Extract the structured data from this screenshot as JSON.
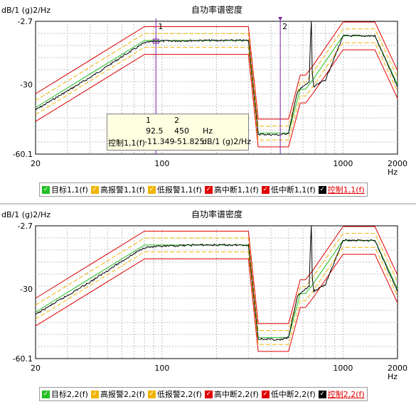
{
  "charts": [
    {
      "title": "自功率谱密度",
      "ylabel": "dB/1 (g)2/Hz",
      "xunit": "Hz",
      "yticks": [
        "-2.7",
        "-30",
        "-60.1"
      ],
      "xticks": [
        "20",
        "100",
        "1000",
        "2000"
      ],
      "cursors": [
        {
          "label": "1",
          "x": 92.5
        },
        {
          "label": "2",
          "x": 450
        }
      ],
      "tooltip": {
        "header": [
          "1",
          "2"
        ],
        "row1": [
          "92.5",
          "450",
          "Hz"
        ],
        "row2": [
          "控制1,1(f)",
          "-11.349",
          "-51.825",
          "dB/1 (g)2/Hz"
        ]
      },
      "legend": [
        {
          "label": "目标1,1(f)",
          "color": "#22c022",
          "checked": true
        },
        {
          "label": "高报警1,1(f)",
          "color": "#f0b400",
          "checked": true
        },
        {
          "label": "低报警1,1(f)",
          "color": "#f0b400",
          "checked": true
        },
        {
          "label": "高中断1,1(f)",
          "color": "#e00000",
          "checked": true
        },
        {
          "label": "低中断1,1(f)",
          "color": "#e00000",
          "checked": true
        },
        {
          "label": "控制1,1(f)",
          "color": "#000000",
          "checked": true
        }
      ]
    },
    {
      "title": "自功率谱密度",
      "ylabel": "dB/1 (g)2/Hz",
      "xunit": "Hz",
      "yticks": [
        "-2.7",
        "-30",
        "-60.1"
      ],
      "xticks": [
        "20",
        "100",
        "1000",
        "2000"
      ],
      "legend": [
        {
          "label": "目标2,2(f)",
          "color": "#22c022",
          "checked": true
        },
        {
          "label": "高报警2,2(f)",
          "color": "#f0b400",
          "checked": true
        },
        {
          "label": "低报警2,2(f)",
          "color": "#f0b400",
          "checked": true
        },
        {
          "label": "高中断2,2(f)",
          "color": "#e00000",
          "checked": true
        },
        {
          "label": "低中断2,2(f)",
          "color": "#e00000",
          "checked": true
        },
        {
          "label": "控制2,2(f)",
          "color": "#000000",
          "checked": true
        }
      ]
    }
  ],
  "chart_data": [
    {
      "type": "line",
      "title": "自功率谱密度",
      "ylabel": "dB/1 (g)2/Hz",
      "xlabel": "Hz",
      "xscale": "log",
      "xlim": [
        20,
        2000
      ],
      "ylim": [
        -60.1,
        -2.7
      ],
      "grid": true,
      "series": [
        {
          "name": "目标1,1(f)",
          "color": "#22c022",
          "x": [
            20,
            80,
            300,
            340,
            500,
            580,
            620,
            680,
            1000,
            1500,
            2000
          ],
          "y": [
            -40,
            -11,
            -11,
            -51,
            -51,
            -32,
            -32,
            -28,
            -9,
            -9,
            -30
          ]
        },
        {
          "name": "高报警1,1(f)",
          "color": "#f0b400",
          "x": [
            20,
            80,
            300,
            340,
            500,
            580,
            620,
            680,
            1000,
            1500,
            2000
          ],
          "y": [
            -37,
            -8,
            -8,
            -48,
            -48,
            -29,
            -29,
            -25,
            -6,
            -6,
            -27
          ]
        },
        {
          "name": "低报警1,1(f)",
          "color": "#f0b400",
          "x": [
            20,
            80,
            300,
            340,
            500,
            580,
            620,
            680,
            1000,
            1500,
            2000
          ],
          "y": [
            -43,
            -14,
            -14,
            -54,
            -54,
            -35,
            -35,
            -31,
            -12,
            -12,
            -33
          ]
        },
        {
          "name": "高中断1,1(f)",
          "color": "#e00000",
          "x": [
            20,
            80,
            300,
            340,
            500,
            580,
            620,
            680,
            1000,
            1500,
            2000
          ],
          "y": [
            -34,
            -5,
            -5,
            -45,
            -45,
            -26,
            -26,
            -22,
            -3,
            -3,
            -24
          ]
        },
        {
          "name": "低中断1,1(f)",
          "color": "#e00000",
          "x": [
            20,
            80,
            300,
            340,
            500,
            580,
            620,
            680,
            1000,
            1500,
            2000
          ],
          "y": [
            -46,
            -17,
            -17,
            -57,
            -57,
            -38,
            -38,
            -34,
            -15,
            -15,
            -36
          ]
        },
        {
          "name": "控制1,1(f)",
          "color": "#000000",
          "x": [
            20,
            40,
            60,
            80,
            92.5,
            150,
            300,
            340,
            450,
            500,
            560,
            600,
            650,
            660,
            668,
            676,
            690,
            800,
            1000,
            1500,
            2000
          ],
          "y": [
            -41,
            -27,
            -18,
            -12,
            -11.3,
            -11,
            -11,
            -51.5,
            -51.8,
            -51,
            -33,
            -31,
            -29,
            -12,
            -2.7,
            -25,
            -31,
            -28,
            -9,
            -9,
            -31
          ]
        }
      ]
    },
    {
      "type": "line",
      "title": "自功率谱密度",
      "ylabel": "dB/1 (g)2/Hz",
      "xlabel": "Hz",
      "xscale": "log",
      "xlim": [
        20,
        2000
      ],
      "ylim": [
        -60.1,
        -2.7
      ],
      "grid": true,
      "series": [
        {
          "name": "目标2,2(f)",
          "color": "#22c022",
          "x": [
            20,
            80,
            300,
            340,
            500,
            580,
            620,
            680,
            1000,
            1500,
            2000
          ],
          "y": [
            -40,
            -11,
            -11,
            -51,
            -51,
            -32,
            -32,
            -28,
            -9,
            -9,
            -30
          ]
        },
        {
          "name": "高报警2,2(f)",
          "color": "#f0b400",
          "x": [
            20,
            80,
            300,
            340,
            500,
            580,
            620,
            680,
            1000,
            1500,
            2000
          ],
          "y": [
            -37,
            -8,
            -8,
            -48,
            -48,
            -29,
            -29,
            -25,
            -6,
            -6,
            -27
          ]
        },
        {
          "name": "低报警2,2(f)",
          "color": "#f0b400",
          "x": [
            20,
            80,
            300,
            340,
            500,
            580,
            620,
            680,
            1000,
            1500,
            2000
          ],
          "y": [
            -43,
            -14,
            -14,
            -54,
            -54,
            -35,
            -35,
            -31,
            -12,
            -12,
            -33
          ]
        },
        {
          "name": "高中断2,2(f)",
          "color": "#e00000",
          "x": [
            20,
            80,
            300,
            340,
            500,
            580,
            620,
            680,
            1000,
            1500,
            2000
          ],
          "y": [
            -34,
            -5,
            -5,
            -45,
            -45,
            -26,
            -26,
            -22,
            -3,
            -3,
            -24
          ]
        },
        {
          "name": "低中断2,2(f)",
          "color": "#e00000",
          "x": [
            20,
            80,
            300,
            340,
            500,
            580,
            620,
            680,
            1000,
            1500,
            2000
          ],
          "y": [
            -46,
            -17,
            -17,
            -57,
            -57,
            -38,
            -38,
            -34,
            -15,
            -15,
            -36
          ]
        },
        {
          "name": "控制2,2(f)",
          "color": "#000000",
          "x": [
            20,
            40,
            60,
            80,
            150,
            300,
            340,
            450,
            500,
            560,
            600,
            650,
            660,
            668,
            676,
            690,
            800,
            1000,
            1500,
            2000
          ],
          "y": [
            -41,
            -27,
            -18,
            -12,
            -11,
            -11,
            -51.5,
            -52,
            -51,
            -33,
            -31,
            -29,
            -12,
            -2.7,
            -25,
            -31,
            -28,
            -9,
            -9,
            -31
          ]
        }
      ]
    }
  ]
}
